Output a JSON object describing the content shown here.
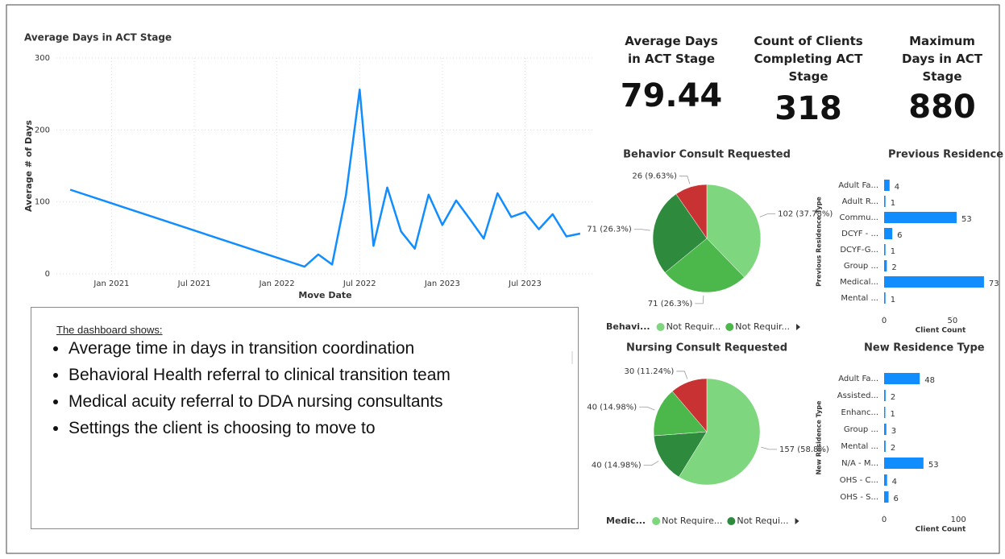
{
  "chart_data": [
    {
      "type": "line",
      "title": "Average Days in ACT Stage",
      "xlabel": "Move Date",
      "ylabel": "Average # of Days",
      "color": "#118dff",
      "x": [
        "2020-10",
        "2022-03",
        "2022-04",
        "2022-05",
        "2022-06",
        "2022-07",
        "2022-08",
        "2022-09",
        "2022-10",
        "2022-11",
        "2022-12",
        "2023-01",
        "2023-02",
        "2023-03",
        "2023-04",
        "2023-05",
        "2023-06",
        "2023-07",
        "2023-08",
        "2023-09",
        "2023-10",
        "2023-11"
      ],
      "values": [
        117,
        10,
        27,
        13,
        109,
        256,
        39,
        120,
        59,
        35,
        110,
        68,
        102,
        76,
        49,
        112,
        79,
        86,
        62,
        83,
        52,
        56
      ],
      "xlim": [
        "2020-09",
        "2023-12"
      ],
      "xticks": [
        {
          "value": "2021-01",
          "label": "Jan 2021"
        },
        {
          "value": "2021-07",
          "label": "Jul 2021"
        },
        {
          "value": "2022-01",
          "label": "Jan 2022"
        },
        {
          "value": "2022-07",
          "label": "Jul 2022"
        },
        {
          "value": "2023-01",
          "label": "Jan 2023"
        },
        {
          "value": "2023-07",
          "label": "Jul 2023"
        }
      ],
      "ylim": [
        0,
        300
      ],
      "yticks": [
        0,
        100,
        200,
        300
      ],
      "grid": true
    },
    {
      "type": "pie",
      "title": "Behavior Consult Requested",
      "legend_title": "Behavi...",
      "categories": [
        "Not Requir...",
        "Not Requir...",
        null,
        null
      ],
      "values": [
        102,
        71,
        71,
        26
      ],
      "value_labels": [
        "102 (37.78%)",
        "71 (26.3%)",
        "71 (26.3%)",
        "26 (9.63%)"
      ],
      "colors": [
        "#7ed67e",
        "#4cb84c",
        "#2e8b3e",
        "#c83232"
      ]
    },
    {
      "type": "bar",
      "orientation": "horizontal",
      "title": "Previous Residence Type",
      "xlabel": "Client Count",
      "ylabel": "Previous Residence Type",
      "color": "#118dff",
      "categories": [
        "Adult Fa...",
        "Adult R...",
        "Commu...",
        "DCYF - ...",
        "DCYF-G...",
        "Group ...",
        "Medical...",
        "Mental ..."
      ],
      "values": [
        4,
        1,
        53,
        6,
        1,
        2,
        73,
        1
      ],
      "xlim": [
        0,
        76
      ],
      "xticks": [
        0,
        50
      ]
    },
    {
      "type": "pie",
      "title": "Nursing Consult Requested",
      "legend_title": "Medic...",
      "categories": [
        "Not Require...",
        "Not Requi...",
        null,
        null
      ],
      "values": [
        157,
        40,
        40,
        30
      ],
      "value_labels": [
        "157 (58.8%)",
        "40 (14.98%)",
        "40 (14.98%)",
        "30 (11.24%)"
      ],
      "colors": [
        "#7ed67e",
        "#2e8b3e",
        "#4cb84c",
        "#c83232"
      ]
    },
    {
      "type": "bar",
      "orientation": "horizontal",
      "title": "New Residence Type",
      "xlabel": "Client Count",
      "ylabel": "New Residence Type",
      "color": "#118dff",
      "categories": [
        "Adult Fa...",
        "Assisted...",
        "Enhanc...",
        "Group ...",
        "Mental ...",
        "N/A - M...",
        "OHS - C...",
        "OHS - S..."
      ],
      "values": [
        48,
        2,
        1,
        3,
        2,
        53,
        4,
        6
      ],
      "xlim": [
        0,
        140
      ],
      "xticks": [
        0,
        100
      ]
    }
  ],
  "kpis": [
    {
      "title": "Average Days in ACT Stage",
      "value": 79.44
    },
    {
      "title": "Count of Clients Completing ACT Stage",
      "value": 318
    },
    {
      "title": "Maximum Days in ACT Stage",
      "value": 880
    }
  ],
  "notes": {
    "heading": "The dashboard shows:",
    "bullets": [
      "Average time in days in transition coordination",
      "Behavioral Health referral to clinical transition team",
      "Medical acuity referral to DDA nursing consultants",
      "Settings the client is choosing to move to"
    ]
  }
}
